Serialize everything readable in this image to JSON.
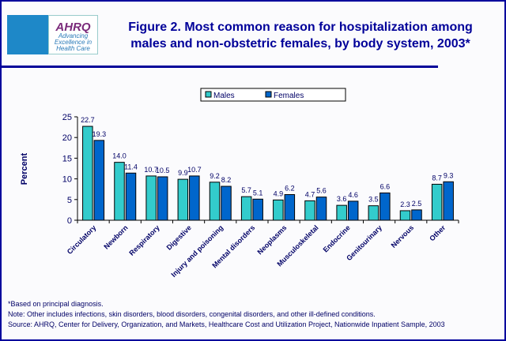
{
  "header": {
    "title_line1": "Figure 2. Most common reason for hospitalization among",
    "title_line2": "males and non-obstetric females, by body system, 2003*",
    "logo": {
      "name": "AHRQ",
      "tagline": [
        "Advancing",
        "Excellence in",
        "Health Care"
      ]
    }
  },
  "chart_data": {
    "type": "bar",
    "title": "Figure 2. Most common reason for hospitalization among males and non-obstetric females, by body system, 2003*",
    "xlabel": "",
    "ylabel": "Percent",
    "ylim": [
      0,
      25
    ],
    "yticks": [
      0,
      5,
      10,
      15,
      20,
      25
    ],
    "grid": false,
    "legend": "top-center",
    "categories": [
      "Circulatory",
      "Newborn",
      "Respiratory",
      "Digestive",
      "Injury and poisoning",
      "Mental disorders",
      "Neoplasms",
      "Musculoskeletal",
      "Endocrine",
      "Genitourinary",
      "Nervous",
      "Other"
    ],
    "series": [
      {
        "name": "Males",
        "color": "#33cccc",
        "values": [
          22.7,
          14.0,
          10.7,
          9.9,
          9.2,
          5.7,
          4.9,
          4.7,
          3.6,
          3.5,
          2.3,
          8.7
        ]
      },
      {
        "name": "Females",
        "color": "#0066cc",
        "values": [
          19.3,
          11.4,
          10.5,
          10.7,
          8.2,
          5.1,
          6.2,
          5.6,
          4.6,
          6.6,
          2.5,
          9.3
        ]
      }
    ]
  },
  "footnotes": [
    "*Based on principal diagnosis.",
    "Note: Other includes infections, skin disorders, blood disorders, congenital disorders, and other ill-defined conditions.",
    "Source: AHRQ, Center for Delivery, Organization, and Markets, Healthcare Cost and Utilization Project, Nationwide Inpatient Sample, 2003"
  ]
}
